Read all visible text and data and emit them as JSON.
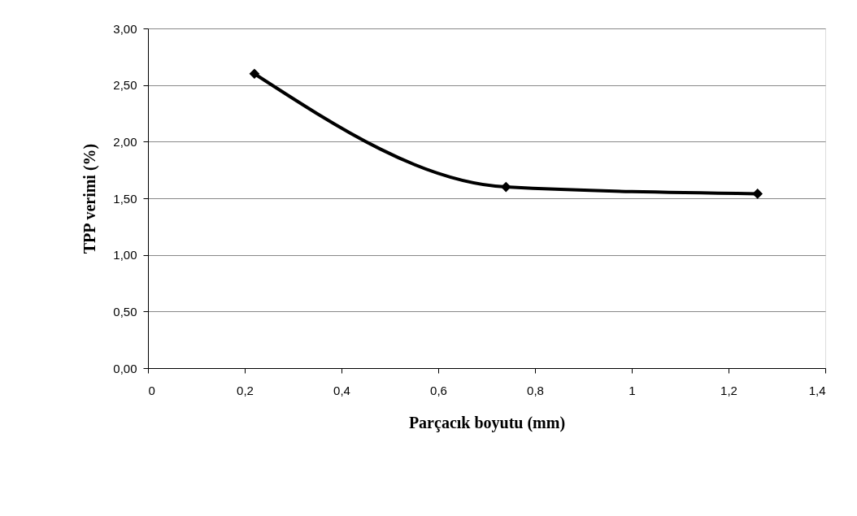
{
  "chart_data": {
    "type": "line",
    "xlabel": "Parçacık boyutu (mm)",
    "ylabel": "TPP  verimi (%)",
    "x": [
      0.22,
      0.74,
      1.26
    ],
    "series": [
      {
        "color": "#000000",
        "values": [
          2.6,
          1.6,
          1.54
        ]
      }
    ],
    "xlim": [
      0,
      1.4
    ],
    "xticks": [
      0,
      {
        "value": 0.2,
        "label": "0,2"
      },
      {
        "value": 0.4,
        "label": "0,4"
      },
      {
        "value": 0.6,
        "label": "0,6"
      },
      {
        "value": 0.8,
        "label": "0,8"
      },
      1,
      {
        "value": 1.2,
        "label": "1,2"
      },
      {
        "value": 1.4,
        "label": "1,4"
      }
    ],
    "ylim": [
      0,
      3
    ],
    "yticks": [
      {
        "value": 0,
        "label": "0,00"
      },
      {
        "value": 0.5,
        "label": "0,50"
      },
      {
        "value": 1,
        "label": "1,00"
      },
      {
        "value": 1.5,
        "label": "1,50"
      },
      {
        "value": 2,
        "label": "2,00"
      },
      {
        "value": 2.5,
        "label": "2,50"
      },
      {
        "value": 3,
        "label": "3,00"
      }
    ],
    "grid": "y",
    "marker": "diamond",
    "line_style": "solid"
  }
}
